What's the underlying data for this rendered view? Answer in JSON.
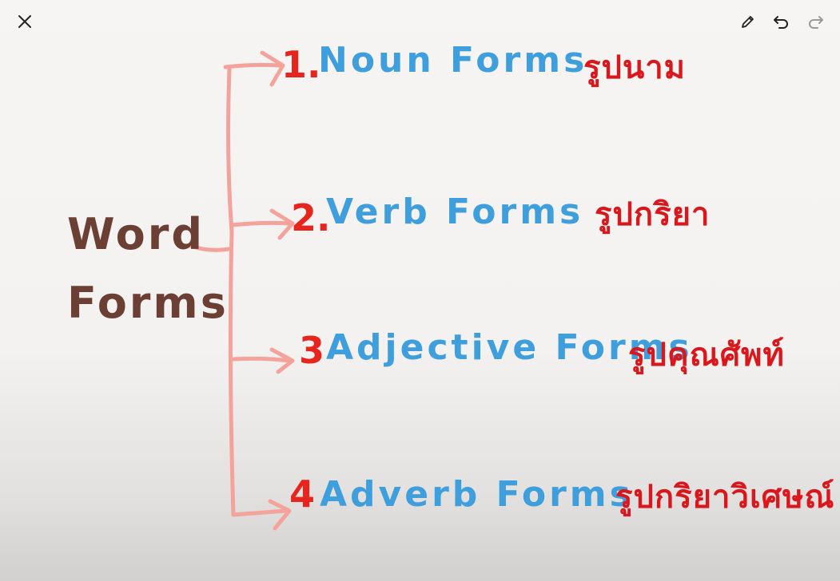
{
  "toolbar": {
    "close_icon": "close-icon",
    "pencil_icon": "pencil-icon",
    "undo_icon": "undo-icon",
    "redo_icon": "redo-icon"
  },
  "diagram": {
    "root": {
      "line1": "Word",
      "line2": "Forms"
    },
    "branches": [
      {
        "number": "1.",
        "label": "Noun Forms",
        "thai": "รูปนาม"
      },
      {
        "number": "2.",
        "label": "Verb Forms",
        "thai": "รูปกริยา"
      },
      {
        "number": "3",
        "label": "Adjective Forms",
        "thai": "รูปคุณศัพท์"
      },
      {
        "number": "4",
        "label": "Adverb Forms",
        "thai": "รูปกริยาวิเศษณ์"
      }
    ]
  },
  "colors": {
    "root_text": "#6b3f34",
    "number_text": "#e8251c",
    "english_text": "#3f9fdd",
    "thai_text": "#d9171c",
    "connector": "#f4a39c"
  }
}
